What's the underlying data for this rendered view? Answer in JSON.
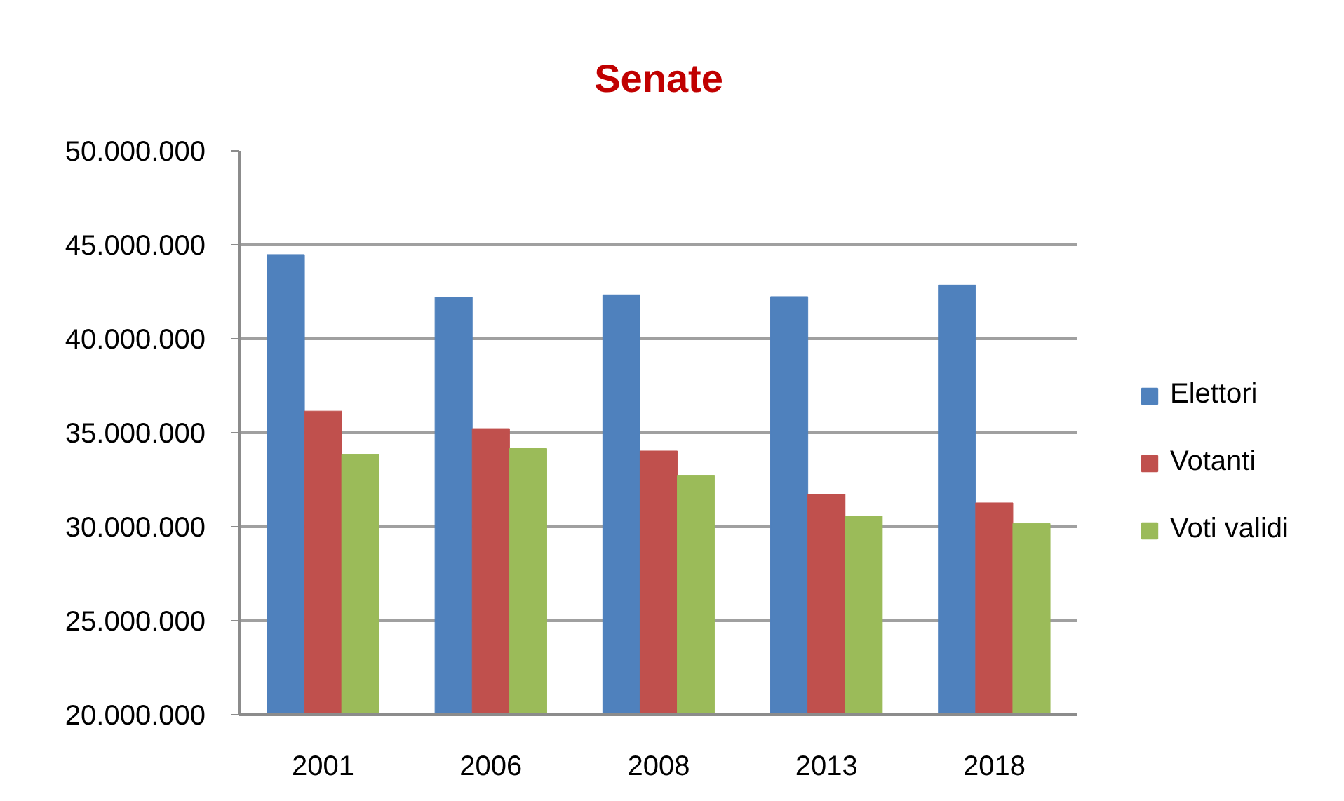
{
  "chart_data": {
    "type": "bar",
    "title": "Senate",
    "categories": [
      "2001",
      "2006",
      "2008",
      "2013",
      "2018"
    ],
    "series": [
      {
        "name": "Elettori",
        "color": "#4f81bd",
        "values": [
          44480000,
          42220000,
          42340000,
          42240000,
          42860000
        ]
      },
      {
        "name": "Votanti",
        "color": "#c0504d",
        "values": [
          36150000,
          35220000,
          34030000,
          31720000,
          31270000
        ]
      },
      {
        "name": "Voti validi",
        "color": "#9bbb59",
        "values": [
          33860000,
          34160000,
          32740000,
          30570000,
          30170000
        ]
      }
    ],
    "ylim": [
      20000000,
      50000000
    ],
    "yticks": [
      {
        "value": 20000000,
        "label": "20.000.000"
      },
      {
        "value": 25000000,
        "label": "25.000.000"
      },
      {
        "value": 30000000,
        "label": "30.000.000"
      },
      {
        "value": 35000000,
        "label": "35.000.000"
      },
      {
        "value": 40000000,
        "label": "40.000.000"
      },
      {
        "value": 45000000,
        "label": "45.000.000"
      },
      {
        "value": 50000000,
        "label": "50.000.000"
      }
    ],
    "grid": "y",
    "legend": "right"
  }
}
